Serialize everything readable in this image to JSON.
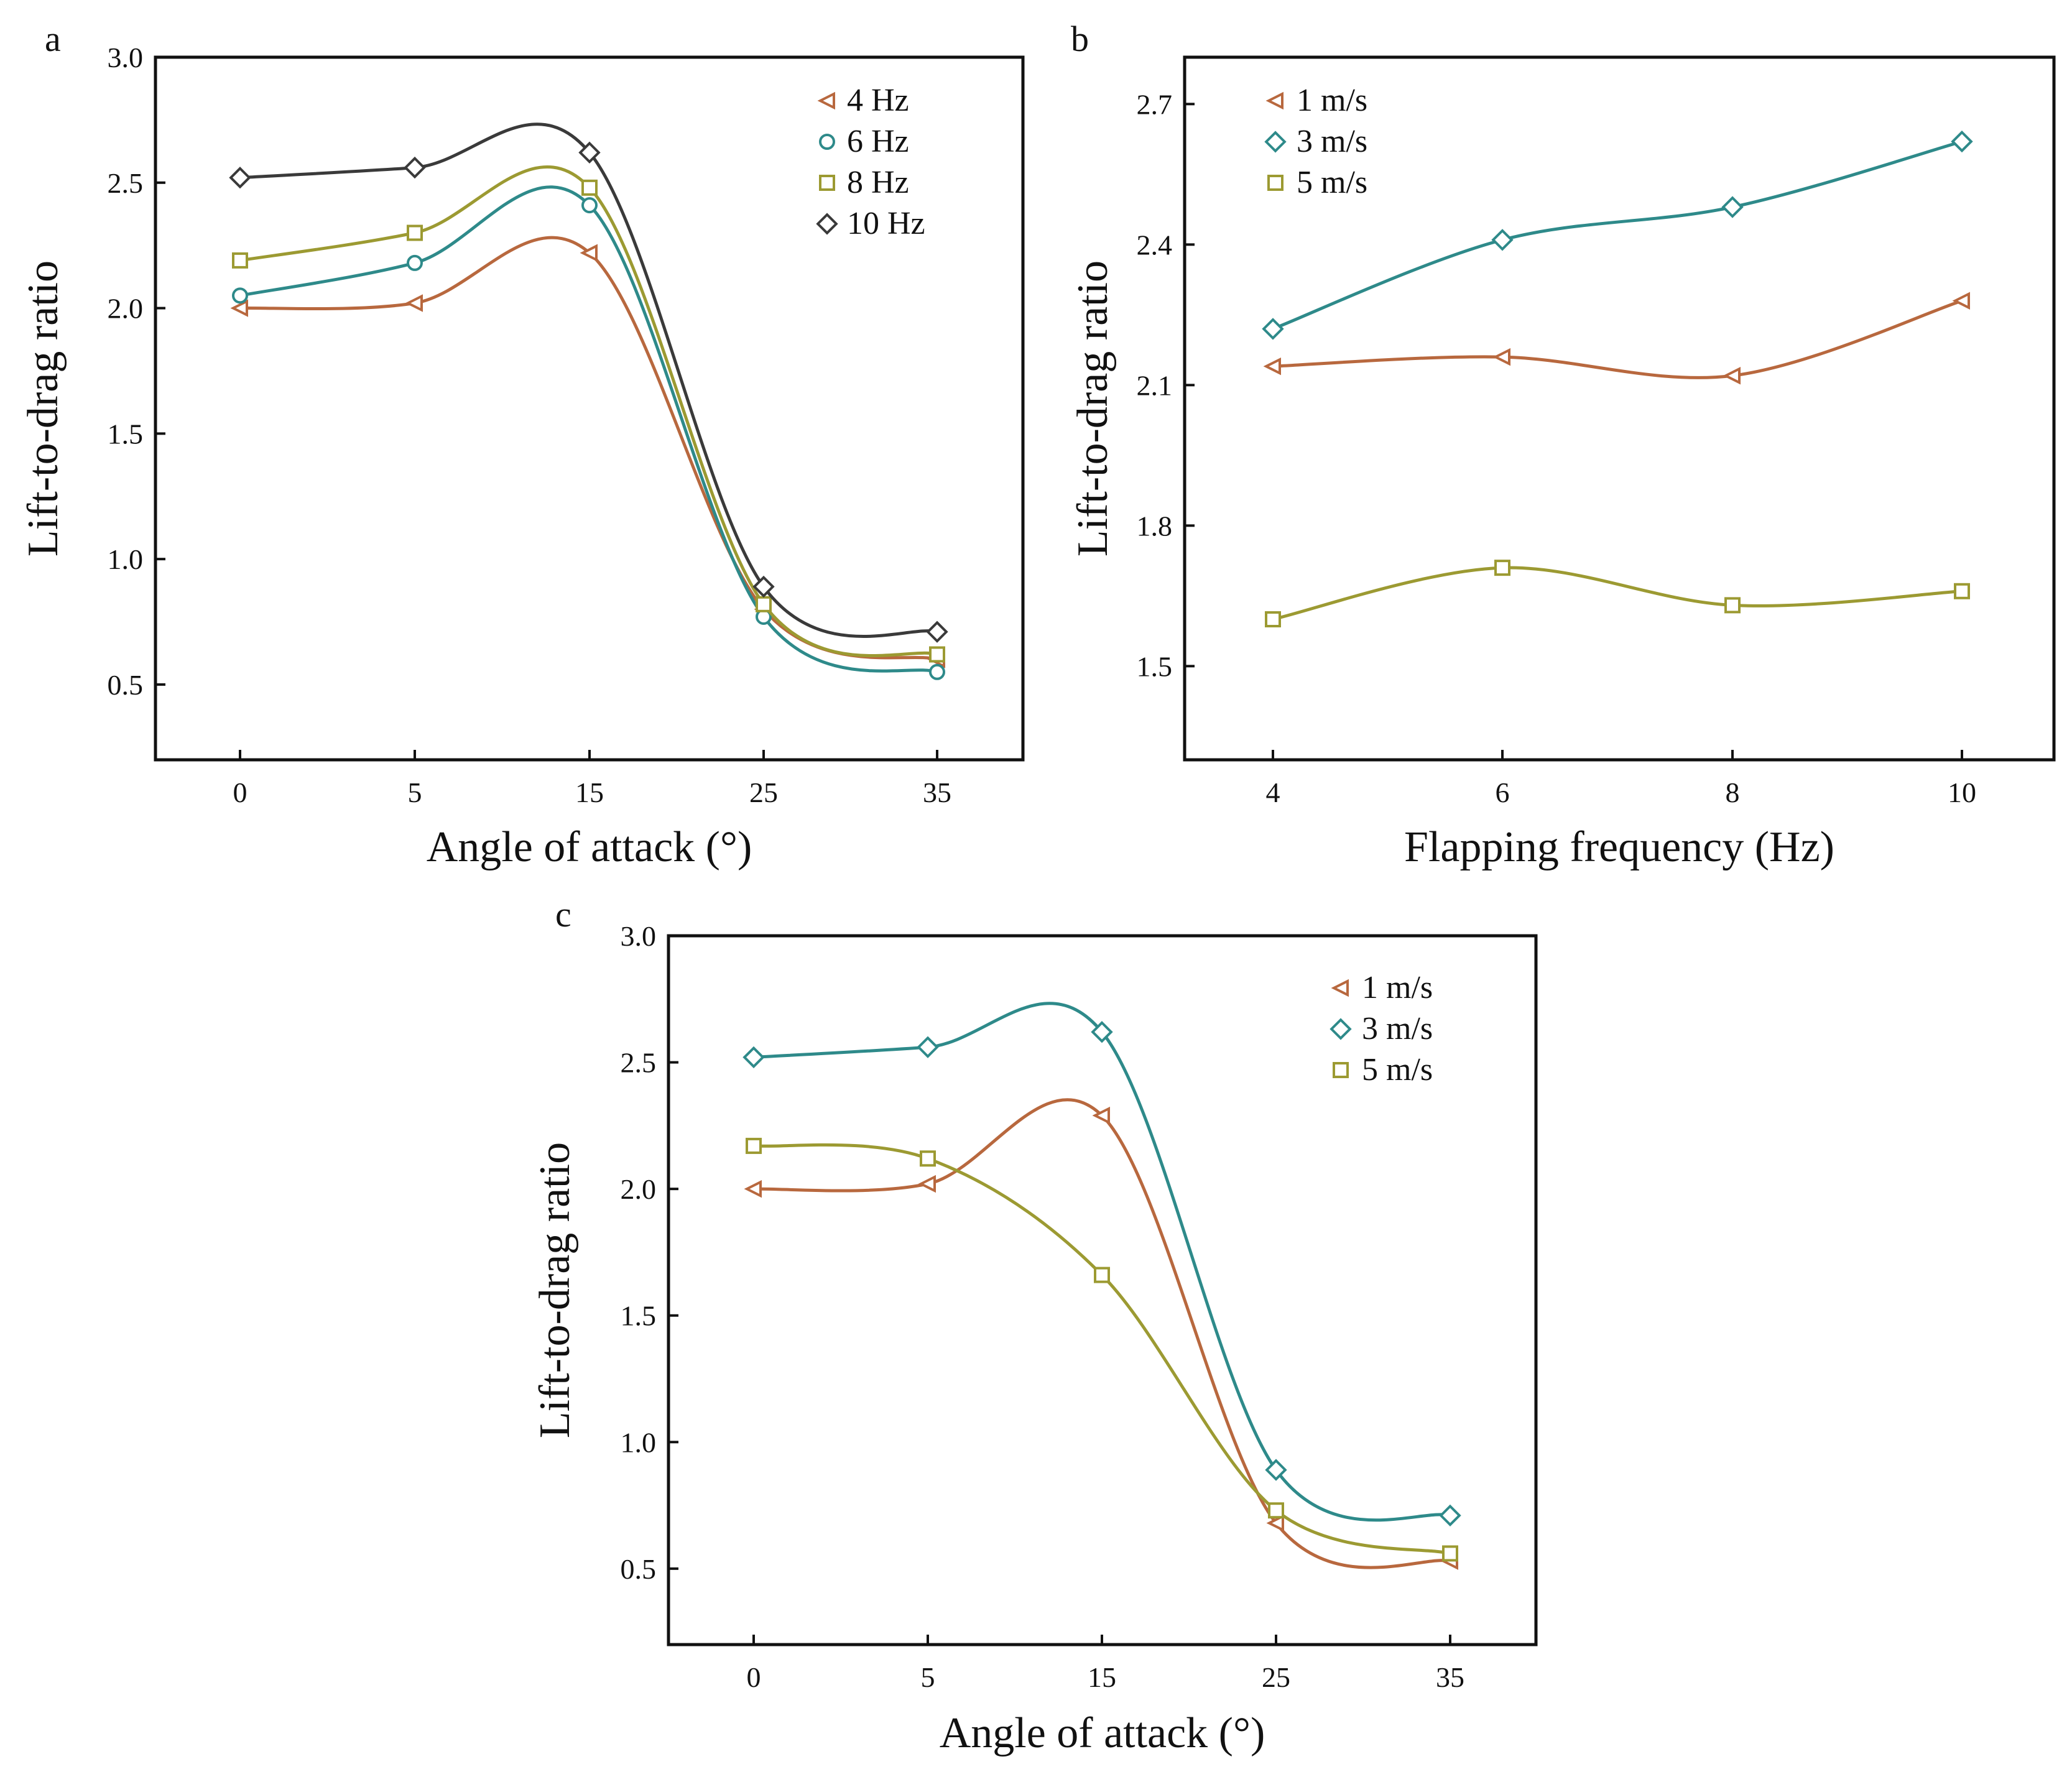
{
  "chart_data": [
    {
      "panel": "a",
      "type": "line",
      "xlabel": "Angle of attack (°)",
      "ylabel": "Lift-to-drag ratio",
      "categories": [
        "0",
        "5",
        "15",
        "25",
        "35"
      ],
      "ylim": [
        0.2,
        3.0
      ],
      "yticks": [
        "0.5",
        "1.0",
        "1.5",
        "2.0",
        "2.5",
        "3.0"
      ],
      "legend_position": "top-right",
      "series": [
        {
          "name": "4 Hz",
          "marker": "triangle-left",
          "color": "#b8683e",
          "values": [
            2.0,
            2.02,
            2.22,
            0.8,
            0.6
          ]
        },
        {
          "name": "6 Hz",
          "marker": "circle",
          "color": "#2e8a8a",
          "values": [
            2.05,
            2.18,
            2.41,
            0.77,
            0.55
          ]
        },
        {
          "name": "8 Hz",
          "marker": "square",
          "color": "#9c9a32",
          "values": [
            2.19,
            2.3,
            2.48,
            0.82,
            0.62
          ]
        },
        {
          "name": "10 Hz",
          "marker": "diamond",
          "color": "#3a3a3a",
          "values": [
            2.52,
            2.56,
            2.62,
            0.89,
            0.71
          ]
        }
      ]
    },
    {
      "panel": "b",
      "type": "line",
      "xlabel": "Flapping frequency (Hz)",
      "ylabel": "Lift-to-drag ratio",
      "categories": [
        "4",
        "6",
        "8",
        "10"
      ],
      "ylim": [
        1.3,
        2.8
      ],
      "yticks": [
        "1.5",
        "1.8",
        "2.1",
        "2.4",
        "2.7"
      ],
      "legend_position": "top-left",
      "series": [
        {
          "name": "1 m/s",
          "marker": "triangle-left",
          "color": "#b8683e",
          "values": [
            2.14,
            2.16,
            2.12,
            2.28
          ]
        },
        {
          "name": "3 m/s",
          "marker": "diamond",
          "color": "#2e8a8a",
          "values": [
            2.22,
            2.41,
            2.48,
            2.62
          ]
        },
        {
          "name": "5 m/s",
          "marker": "square",
          "color": "#9c9a32",
          "values": [
            1.6,
            1.71,
            1.63,
            1.66
          ]
        }
      ]
    },
    {
      "panel": "c",
      "type": "line",
      "xlabel": "Angle of attack (°)",
      "ylabel": "Lift-to-drag ratio",
      "categories": [
        "0",
        "5",
        "15",
        "25",
        "35"
      ],
      "ylim": [
        0.2,
        3.0
      ],
      "yticks": [
        "0.5",
        "1.0",
        "1.5",
        "2.0",
        "2.5",
        "3.0"
      ],
      "legend_position": "top-right",
      "series": [
        {
          "name": "1 m/s",
          "marker": "triangle-left",
          "color": "#b8683e",
          "values": [
            2.0,
            2.02,
            2.29,
            0.68,
            0.53
          ]
        },
        {
          "name": "3 m/s",
          "marker": "diamond",
          "color": "#2e8a8a",
          "values": [
            2.52,
            2.56,
            2.62,
            0.89,
            0.71
          ]
        },
        {
          "name": "5 m/s",
          "marker": "square",
          "color": "#9c9a32",
          "values": [
            2.17,
            2.12,
            1.66,
            0.73,
            0.56
          ]
        }
      ]
    }
  ]
}
